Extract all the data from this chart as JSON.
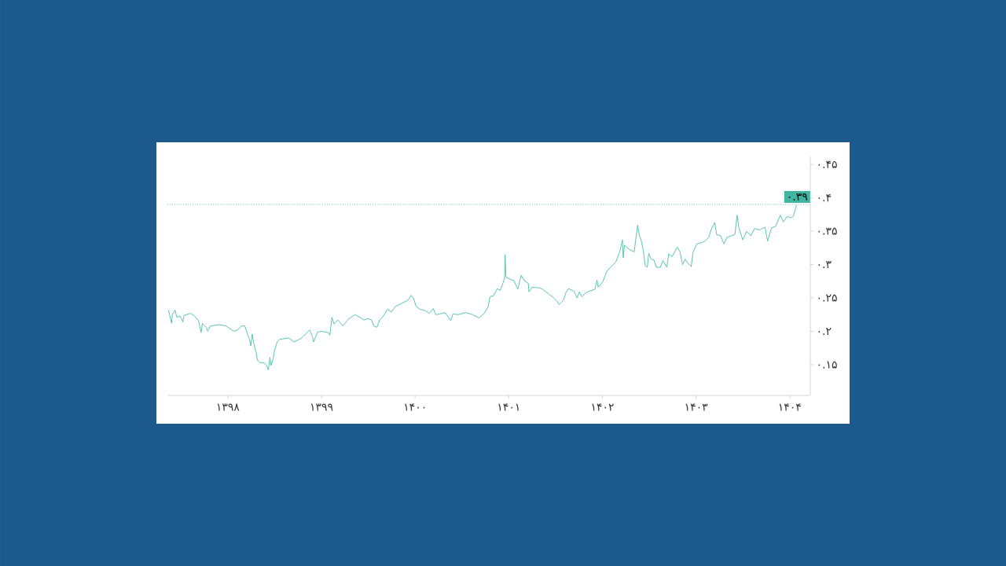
{
  "chart_data": {
    "type": "line",
    "color": "#5bc4b3",
    "x": [
      1397.366,
      1397.399,
      1397.407,
      1397.436,
      1397.455,
      1397.491,
      1397.52,
      1397.533,
      1397.604,
      1397.645,
      1397.687,
      1397.715,
      1397.729,
      1397.771,
      1397.785,
      1397.813,
      1397.91,
      1397.981,
      1398.065,
      1398.106,
      1398.143,
      1398.182,
      1398.204,
      1398.232,
      1398.246,
      1398.26,
      1398.274,
      1398.302,
      1398.316,
      1398.344,
      1398.386,
      1398.413,
      1398.433,
      1398.45,
      1398.461,
      1398.484,
      1398.497,
      1398.526,
      1398.553,
      1398.651,
      1398.707,
      1398.777,
      1398.832,
      1398.874,
      1398.903,
      1398.916,
      1398.958,
      1399.006,
      1399.075,
      1399.089,
      1399.112,
      1399.132,
      1399.174,
      1399.23,
      1399.285,
      1399.355,
      1399.411,
      1399.453,
      1399.495,
      1399.536,
      1399.559,
      1399.593,
      1399.62,
      1399.662,
      1399.704,
      1399.746,
      1399.788,
      1399.844,
      1399.9,
      1399.928,
      1399.956,
      1399.984,
      1400.012,
      1400.054,
      1400.11,
      1400.152,
      1400.194,
      1400.221,
      1400.263,
      1400.319,
      1400.381,
      1400.403,
      1400.459,
      1400.542,
      1400.613,
      1400.682,
      1400.738,
      1400.78,
      1400.8,
      1400.836,
      1400.878,
      1400.906,
      1400.928,
      1400.956,
      1400.961,
      1400.97,
      1401.012,
      1401.054,
      1401.096,
      1401.132,
      1401.166,
      1401.208,
      1401.216,
      1401.25,
      1401.334,
      1401.361,
      1401.417,
      1401.473,
      1401.515,
      1401.537,
      1401.585,
      1401.613,
      1401.64,
      1401.697,
      1401.73,
      1401.753,
      1401.78,
      1401.837,
      1401.92,
      1401.942,
      1401.954,
      1402.004,
      1402.046,
      1402.088,
      1402.143,
      1402.185,
      1402.214,
      1402.222,
      1402.236,
      1402.283,
      1402.339,
      1402.376,
      1402.395,
      1402.409,
      1402.437,
      1402.457,
      1402.479,
      1402.495,
      1402.521,
      1402.549,
      1402.577,
      1402.619,
      1402.646,
      1402.688,
      1402.708,
      1402.744,
      1402.8,
      1402.828,
      1402.856,
      1402.884,
      1402.912,
      1402.948,
      1402.968,
      1403.01,
      1403.065,
      1403.094,
      1403.136,
      1403.163,
      1403.199,
      1403.22,
      1403.262,
      1403.298,
      1403.331,
      1403.415,
      1403.438,
      1403.457,
      1403.499,
      1403.541,
      1403.583,
      1403.624,
      1403.681,
      1403.736,
      1403.764,
      1403.806,
      1403.848,
      1403.899,
      1403.932,
      1403.974,
      1404.016,
      1404.038,
      1404.058,
      1404.071
    ],
    "values": [
      0.232,
      0.212,
      0.225,
      0.232,
      0.221,
      0.223,
      0.214,
      0.224,
      0.227,
      0.223,
      0.216,
      0.198,
      0.212,
      0.206,
      0.2,
      0.208,
      0.21,
      0.208,
      0.2,
      0.202,
      0.208,
      0.208,
      0.198,
      0.188,
      0.178,
      0.196,
      0.184,
      0.168,
      0.157,
      0.153,
      0.153,
      0.149,
      0.142,
      0.161,
      0.149,
      0.159,
      0.17,
      0.184,
      0.188,
      0.19,
      0.184,
      0.189,
      0.196,
      0.202,
      0.192,
      0.184,
      0.199,
      0.2,
      0.198,
      0.194,
      0.221,
      0.211,
      0.217,
      0.208,
      0.218,
      0.225,
      0.221,
      0.217,
      0.219,
      0.217,
      0.208,
      0.206,
      0.217,
      0.223,
      0.233,
      0.229,
      0.237,
      0.241,
      0.245,
      0.247,
      0.254,
      0.249,
      0.237,
      0.233,
      0.231,
      0.227,
      0.234,
      0.225,
      0.226,
      0.228,
      0.216,
      0.226,
      0.225,
      0.228,
      0.225,
      0.22,
      0.227,
      0.237,
      0.252,
      0.253,
      0.264,
      0.261,
      0.268,
      0.28,
      0.315,
      0.281,
      0.278,
      0.276,
      0.263,
      0.284,
      0.276,
      0.272,
      0.259,
      0.266,
      0.265,
      0.263,
      0.257,
      0.251,
      0.245,
      0.24,
      0.247,
      0.259,
      0.264,
      0.26,
      0.25,
      0.259,
      0.252,
      0.259,
      0.263,
      0.277,
      0.266,
      0.274,
      0.29,
      0.296,
      0.304,
      0.319,
      0.337,
      0.31,
      0.329,
      0.323,
      0.319,
      0.359,
      0.343,
      0.339,
      0.321,
      0.298,
      0.296,
      0.317,
      0.308,
      0.307,
      0.296,
      0.296,
      0.306,
      0.296,
      0.316,
      0.312,
      0.326,
      0.319,
      0.3,
      0.308,
      0.302,
      0.297,
      0.319,
      0.331,
      0.333,
      0.335,
      0.341,
      0.353,
      0.363,
      0.345,
      0.343,
      0.331,
      0.341,
      0.345,
      0.374,
      0.355,
      0.337,
      0.35,
      0.343,
      0.354,
      0.352,
      0.356,
      0.335,
      0.355,
      0.357,
      0.374,
      0.364,
      0.372,
      0.37,
      0.372,
      0.382,
      0.389
    ],
    "xlim": [
      1397.355,
      1404.22
    ],
    "xticks": [
      {
        "value": 1398,
        "label": "۱۳۹۸"
      },
      {
        "value": 1399,
        "label": "۱۳۹۹"
      },
      {
        "value": 1400,
        "label": "۱۴۰۰"
      },
      {
        "value": 1401,
        "label": "۱۴۰۱"
      },
      {
        "value": 1402,
        "label": "۱۴۰۲"
      },
      {
        "value": 1403,
        "label": "۱۴۰۳"
      },
      {
        "value": 1404,
        "label": "۱۴۰۴"
      }
    ],
    "ylim": [
      0.104,
      0.462
    ],
    "yticks": [
      {
        "value": 0.15,
        "label": "۰.۱۵"
      },
      {
        "value": 0.2,
        "label": "۰.۲"
      },
      {
        "value": 0.25,
        "label": "۰.۲۵"
      },
      {
        "value": 0.3,
        "label": "۰.۳"
      },
      {
        "value": 0.35,
        "label": "۰.۳۵"
      },
      {
        "value": 0.4,
        "label": "۰.۴"
      },
      {
        "value": 0.45,
        "label": "۰.۴۵"
      }
    ],
    "ref_lines": [
      {
        "axis": "y",
        "value": 0.39,
        "label": "۰.۳۹",
        "color": "#3fb5a2",
        "line_style": "dotted"
      }
    ]
  }
}
